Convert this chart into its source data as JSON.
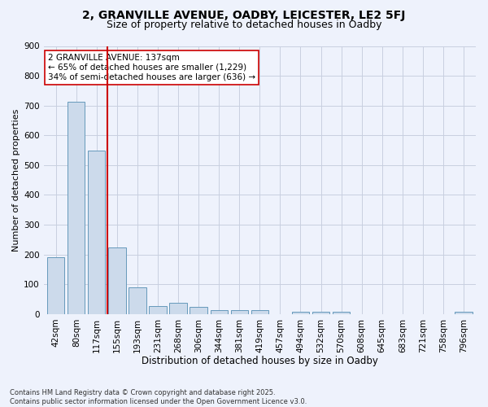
{
  "title1": "2, GRANVILLE AVENUE, OADBY, LEICESTER, LE2 5FJ",
  "title2": "Size of property relative to detached houses in Oadby",
  "xlabel": "Distribution of detached houses by size in Oadby",
  "ylabel": "Number of detached properties",
  "bar_color": "#ccdaeb",
  "bar_edge_color": "#6699bb",
  "vline_x_index": 2,
  "vline_color": "#cc0000",
  "annotation_text": "2 GRANVILLE AVENUE: 137sqm\n← 65% of detached houses are smaller (1,229)\n34% of semi-detached houses are larger (636) →",
  "annotation_box_color": "#ffffff",
  "annotation_edge_color": "#cc0000",
  "footnote": "Contains HM Land Registry data © Crown copyright and database right 2025.\nContains public sector information licensed under the Open Government Licence v3.0.",
  "categories": [
    "42sqm",
    "80sqm",
    "117sqm",
    "155sqm",
    "193sqm",
    "231sqm",
    "268sqm",
    "306sqm",
    "344sqm",
    "381sqm",
    "419sqm",
    "457sqm",
    "494sqm",
    "532sqm",
    "570sqm",
    "608sqm",
    "645sqm",
    "683sqm",
    "721sqm",
    "758sqm",
    "796sqm"
  ],
  "values": [
    190,
    714,
    548,
    224,
    91,
    27,
    37,
    23,
    12,
    12,
    12,
    0,
    9,
    9,
    7,
    0,
    0,
    0,
    0,
    0,
    9
  ],
  "ylim": [
    0,
    900
  ],
  "yticks": [
    0,
    100,
    200,
    300,
    400,
    500,
    600,
    700,
    800,
    900
  ],
  "background_color": "#eef2fc",
  "grid_color": "#c8cfe0",
  "title1_fontsize": 10,
  "title2_fontsize": 9,
  "xlabel_fontsize": 8.5,
  "ylabel_fontsize": 8,
  "tick_fontsize": 7.5,
  "annot_fontsize": 7.5,
  "footnote_fontsize": 6
}
